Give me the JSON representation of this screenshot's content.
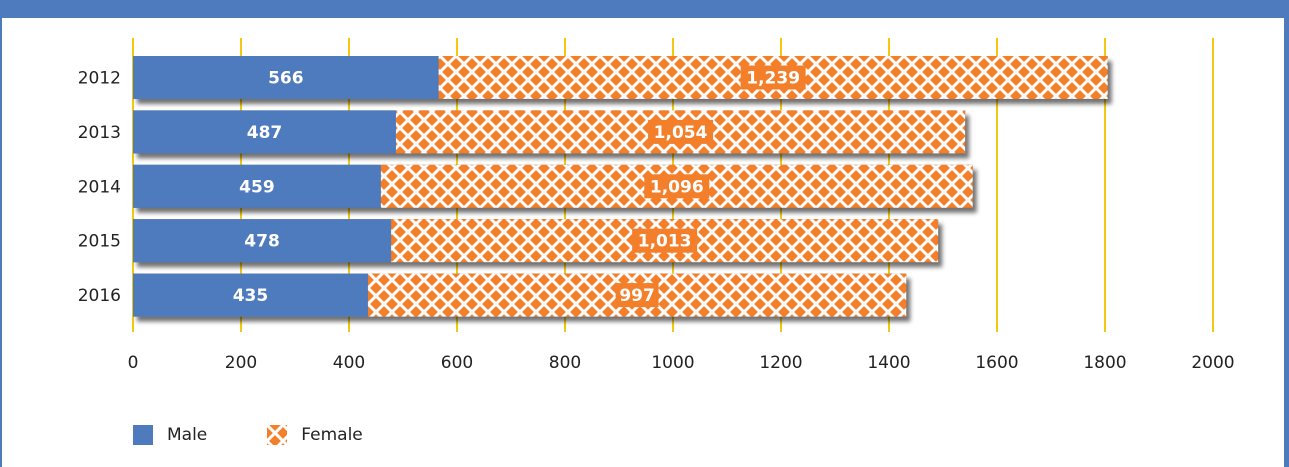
{
  "chart_data": {
    "type": "bar",
    "orientation": "horizontal",
    "stacked": true,
    "categories": [
      "2012",
      "2013",
      "2014",
      "2015",
      "2016"
    ],
    "series": [
      {
        "name": "Male",
        "values": [
          566,
          487,
          459,
          478,
          435
        ],
        "labels": [
          "566",
          "487",
          "459",
          "478",
          "435"
        ],
        "color": "#4e7bbd"
      },
      {
        "name": "Female",
        "values": [
          1239,
          1054,
          1096,
          1013,
          997
        ],
        "labels": [
          "1,239",
          "1,054",
          "1,096",
          "1,013",
          "997"
        ],
        "color": "#f47f2b",
        "pattern": "diamond-lattice"
      }
    ],
    "xlim": [
      0,
      2000
    ],
    "xticks": [
      0,
      200,
      400,
      600,
      800,
      1000,
      1200,
      1400,
      1600,
      1800,
      2000
    ],
    "grid": true,
    "grid_color": "#f2c811",
    "legend_position": "bottom-left"
  }
}
